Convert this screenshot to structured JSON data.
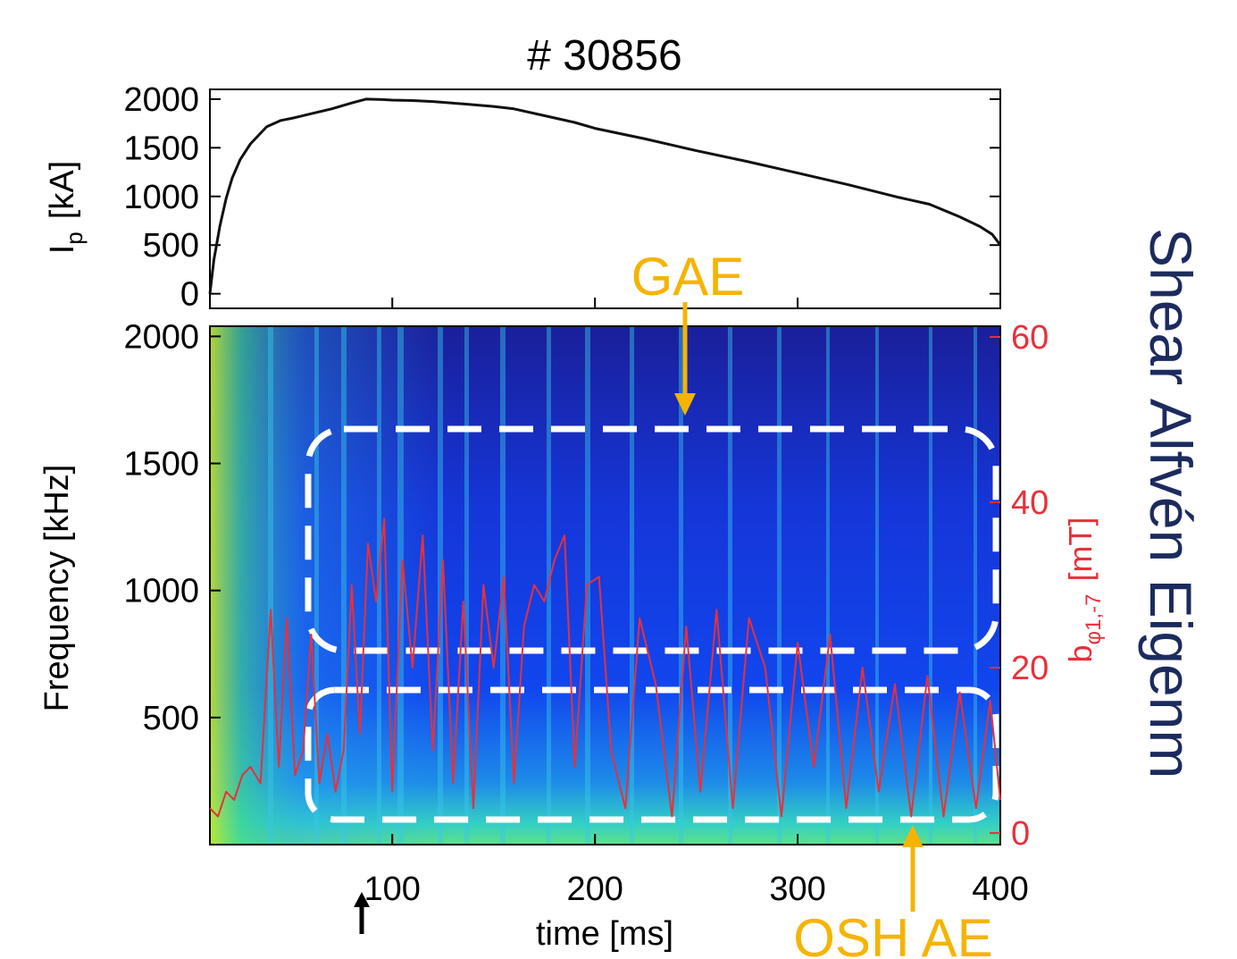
{
  "chart_data": [
    {
      "type": "line",
      "title": "# 30856",
      "ylabel": {
        "main": "I",
        "sub": "p",
        "unit": "[kA]"
      },
      "xlim": [
        10,
        400
      ],
      "ylim": [
        -150,
        2100
      ],
      "yticks": [
        0,
        500,
        1000,
        1500,
        2000
      ],
      "series": [
        {
          "color": "#111111",
          "x": [
            10,
            12,
            15,
            18,
            21,
            25,
            30,
            38,
            45,
            52,
            60,
            70,
            80,
            87,
            95,
            100,
            110,
            120,
            135,
            150,
            160,
            175,
            190,
            200,
            225,
            250,
            275,
            300,
            325,
            350,
            365,
            380,
            390,
            396,
            400
          ],
          "values": [
            0,
            350,
            700,
            980,
            1190,
            1380,
            1540,
            1715,
            1780,
            1810,
            1850,
            1900,
            1960,
            2000,
            1995,
            1990,
            1985,
            1975,
            1950,
            1925,
            1900,
            1830,
            1760,
            1700,
            1590,
            1470,
            1360,
            1240,
            1120,
            990,
            920,
            790,
            690,
            610,
            500
          ]
        }
      ]
    },
    {
      "type": "spectrogram",
      "xlabel": "time  [ms]",
      "ylabel": "Frequency  [kHz]",
      "y2label": {
        "main": "b",
        "sub": "φ1,-7",
        "unit": "[mT]"
      },
      "xlim": [
        10,
        400
      ],
      "xticks": [
        100,
        200,
        300,
        400
      ],
      "ylim": [
        0,
        2040
      ],
      "yticks": [
        500,
        1000,
        1500,
        2000
      ],
      "y2lim": [
        -1.4,
        61.3
      ],
      "y2ticks": [
        0,
        20,
        40,
        60
      ],
      "annotations": [
        "GAE",
        "OSH AE",
        "Shear Alfvén Eigenm"
      ],
      "series": [
        {
          "color": "#e8303a",
          "axis": "y2",
          "x": [
            10,
            14,
            18,
            22,
            26,
            30,
            35,
            40,
            44,
            48,
            52,
            56,
            60,
            64,
            68,
            72,
            76,
            80,
            84,
            88,
            92,
            96,
            100,
            105,
            110,
            115,
            120,
            125,
            130,
            135,
            140,
            145,
            150,
            155,
            160,
            165,
            170,
            175,
            180,
            185,
            190,
            196,
            202,
            208,
            215,
            222,
            230,
            238,
            245,
            252,
            260,
            268,
            276,
            284,
            292,
            300,
            308,
            316,
            324,
            332,
            340,
            348,
            356,
            364,
            372,
            380,
            388,
            395,
            400
          ],
          "values": [
            3,
            2,
            5,
            4,
            7,
            8,
            6,
            27,
            8,
            26,
            7,
            10,
            24,
            6,
            12,
            5,
            10,
            30,
            12,
            35,
            28,
            38,
            5,
            33,
            20,
            36,
            10,
            33,
            6,
            28,
            3,
            30,
            20,
            31,
            6,
            25,
            30,
            28,
            33,
            36,
            8,
            30,
            31,
            10,
            3,
            26,
            18,
            2,
            25,
            5,
            27,
            3,
            26,
            20,
            2,
            23,
            8,
            24,
            3,
            20,
            5,
            18,
            2,
            19,
            2,
            17,
            3,
            16,
            4
          ]
        }
      ]
    }
  ]
}
